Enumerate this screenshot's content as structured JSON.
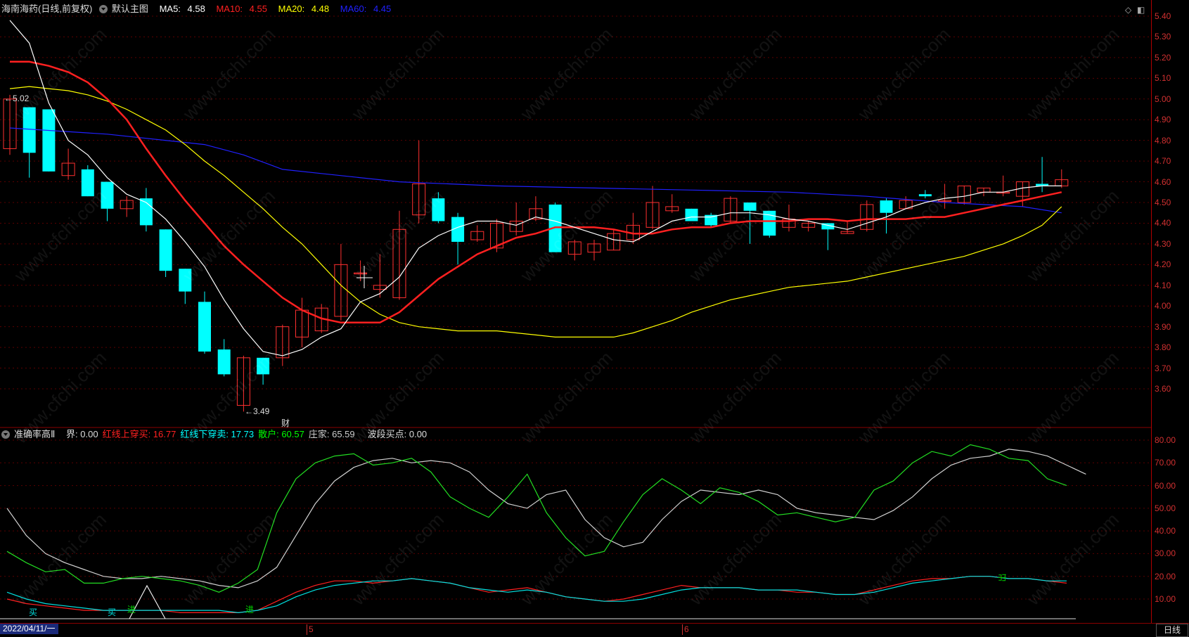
{
  "stock": {
    "name": "海南海药",
    "mode": "(日线,前复权)",
    "main_chart_label": "默认主图",
    "ma5": {
      "label": "MA5:",
      "value": "4.58",
      "color": "#ffffff"
    },
    "ma10": {
      "label": "MA10:",
      "value": "4.55",
      "color": "#ff2020"
    },
    "ma20": {
      "label": "MA20:",
      "value": "4.48",
      "color": "#ffff00"
    },
    "ma60": {
      "label": "MA60:",
      "value": "4.45",
      "color": "#2020ff"
    }
  },
  "indicator": {
    "name": "准确率高Ⅱ",
    "items": [
      {
        "label": "界:",
        "value": "0.00",
        "color": "#dddddd"
      },
      {
        "label": "红线上穿买:",
        "value": "16.77",
        "color": "#ff2020"
      },
      {
        "label": "红线下穿卖:",
        "value": "17.73",
        "color": "#00ffff"
      },
      {
        "label": "散户:",
        "value": "60.57",
        "color": "#00ff00"
      },
      {
        "label": "庄家:",
        "value": "65.59",
        "color": "#cccccc"
      },
      {
        "label": "波段买点:",
        "value": "0.00",
        "color": "#dddddd"
      }
    ]
  },
  "price_axis": [
    "5.40",
    "5.30",
    "5.20",
    "5.10",
    "5.00",
    "4.90",
    "4.80",
    "4.70",
    "4.60",
    "4.50",
    "4.40",
    "4.30",
    "4.20",
    "4.10",
    "4.00",
    "3.90",
    "3.80",
    "3.70",
    "3.60"
  ],
  "indicator_axis": [
    "80.00",
    "70.00",
    "60.00",
    "50.00",
    "40.00",
    "30.00",
    "20.00",
    "10.00"
  ],
  "annotations": {
    "high": "5.02",
    "low": "3.49",
    "finance_mark": "财",
    "buy_marks": [
      "买",
      "买"
    ],
    "enter_marks": [
      "进",
      "进"
    ],
    "exit_mark": "出"
  },
  "dates": {
    "start": "2022/04/11/一",
    "m5": "5",
    "m6": "6"
  },
  "period_button": "日线",
  "watermark": "www.cfchi.com",
  "chart_data": {
    "type": "candlestick",
    "price_range": [
      3.45,
      5.45
    ],
    "candles": [
      {
        "o": 4.76,
        "h": 5.02,
        "l": 4.73,
        "c": 5.0
      },
      {
        "o": 4.96,
        "h": 4.96,
        "l": 4.62,
        "c": 4.74
      },
      {
        "o": 4.95,
        "h": 4.95,
        "l": 4.65,
        "c": 4.65
      },
      {
        "o": 4.63,
        "h": 4.76,
        "l": 4.61,
        "c": 4.69
      },
      {
        "o": 4.66,
        "h": 4.68,
        "l": 4.53,
        "c": 4.53
      },
      {
        "o": 4.6,
        "h": 4.6,
        "l": 4.41,
        "c": 4.47
      },
      {
        "o": 4.47,
        "h": 4.53,
        "l": 4.43,
        "c": 4.51
      },
      {
        "o": 4.52,
        "h": 4.57,
        "l": 4.36,
        "c": 4.39
      },
      {
        "o": 4.37,
        "h": 4.37,
        "l": 4.14,
        "c": 4.17
      },
      {
        "o": 4.18,
        "h": 4.18,
        "l": 4.01,
        "c": 4.07
      },
      {
        "o": 4.02,
        "h": 4.07,
        "l": 3.77,
        "c": 3.78
      },
      {
        "o": 3.79,
        "h": 3.84,
        "l": 3.66,
        "c": 3.67
      },
      {
        "o": 3.52,
        "h": 3.76,
        "l": 3.49,
        "c": 3.75
      },
      {
        "o": 3.75,
        "h": 3.75,
        "l": 3.62,
        "c": 3.67
      },
      {
        "o": 3.75,
        "h": 3.91,
        "l": 3.71,
        "c": 3.9
      },
      {
        "o": 3.85,
        "h": 4.04,
        "l": 3.8,
        "c": 3.98
      },
      {
        "o": 3.88,
        "h": 4.01,
        "l": 3.87,
        "c": 3.99
      },
      {
        "o": 3.95,
        "h": 4.3,
        "l": 3.93,
        "c": 4.2
      },
      {
        "o": 4.16,
        "h": 4.22,
        "l": 4.12,
        "c": 4.16
      },
      {
        "o": 4.08,
        "h": 4.25,
        "l": 4.04,
        "c": 4.1
      },
      {
        "o": 4.04,
        "h": 4.46,
        "l": 4.03,
        "c": 4.37
      },
      {
        "o": 4.44,
        "h": 4.8,
        "l": 4.4,
        "c": 4.59
      },
      {
        "o": 4.52,
        "h": 4.55,
        "l": 4.4,
        "c": 4.41
      },
      {
        "o": 4.43,
        "h": 4.45,
        "l": 4.2,
        "c": 4.31
      },
      {
        "o": 4.32,
        "h": 4.39,
        "l": 4.31,
        "c": 4.36
      },
      {
        "o": 4.28,
        "h": 4.42,
        "l": 4.26,
        "c": 4.4
      },
      {
        "o": 4.36,
        "h": 4.5,
        "l": 4.34,
        "c": 4.41
      },
      {
        "o": 4.42,
        "h": 4.53,
        "l": 4.41,
        "c": 4.47
      },
      {
        "o": 4.49,
        "h": 4.5,
        "l": 4.26,
        "c": 4.26
      },
      {
        "o": 4.25,
        "h": 4.32,
        "l": 4.22,
        "c": 4.31
      },
      {
        "o": 4.26,
        "h": 4.32,
        "l": 4.22,
        "c": 4.3
      },
      {
        "o": 4.27,
        "h": 4.37,
        "l": 4.27,
        "c": 4.35
      },
      {
        "o": 4.32,
        "h": 4.45,
        "l": 4.3,
        "c": 4.39
      },
      {
        "o": 4.38,
        "h": 4.58,
        "l": 4.37,
        "c": 4.5
      },
      {
        "o": 4.46,
        "h": 4.54,
        "l": 4.45,
        "c": 4.48
      },
      {
        "o": 4.47,
        "h": 4.47,
        "l": 4.42,
        "c": 4.41
      },
      {
        "o": 4.44,
        "h": 4.45,
        "l": 4.38,
        "c": 4.39
      },
      {
        "o": 4.41,
        "h": 4.53,
        "l": 4.4,
        "c": 4.52
      },
      {
        "o": 4.5,
        "h": 4.5,
        "l": 4.3,
        "c": 4.46
      },
      {
        "o": 4.46,
        "h": 4.46,
        "l": 4.33,
        "c": 4.34
      },
      {
        "o": 4.38,
        "h": 4.49,
        "l": 4.36,
        "c": 4.42
      },
      {
        "o": 4.38,
        "h": 4.41,
        "l": 4.36,
        "c": 4.4
      },
      {
        "o": 4.4,
        "h": 4.4,
        "l": 4.27,
        "c": 4.37
      },
      {
        "o": 4.35,
        "h": 4.41,
        "l": 4.35,
        "c": 4.36
      },
      {
        "o": 4.37,
        "h": 4.51,
        "l": 4.36,
        "c": 4.49
      },
      {
        "o": 4.51,
        "h": 4.52,
        "l": 4.35,
        "c": 4.45
      },
      {
        "o": 4.47,
        "h": 4.53,
        "l": 4.47,
        "c": 4.51
      },
      {
        "o": 4.54,
        "h": 4.56,
        "l": 4.52,
        "c": 4.53
      },
      {
        "o": 4.51,
        "h": 4.59,
        "l": 4.47,
        "c": 4.51
      },
      {
        "o": 4.5,
        "h": 4.58,
        "l": 4.49,
        "c": 4.58
      },
      {
        "o": 4.55,
        "h": 4.57,
        "l": 4.53,
        "c": 4.57
      },
      {
        "o": 4.55,
        "h": 4.63,
        "l": 4.53,
        "c": 4.55
      },
      {
        "o": 4.53,
        "h": 4.6,
        "l": 4.48,
        "c": 4.6
      },
      {
        "o": 4.59,
        "h": 4.72,
        "l": 4.55,
        "c": 4.58
      },
      {
        "o": 4.58,
        "h": 4.66,
        "l": 4.57,
        "c": 4.61
      }
    ],
    "ma5": [
      [
        0,
        5.38
      ],
      [
        1,
        5.27
      ],
      [
        2,
        4.98
      ],
      [
        3,
        4.8
      ],
      [
        4,
        4.73
      ],
      [
        5,
        4.62
      ],
      [
        6,
        4.54
      ],
      [
        7,
        4.5
      ],
      [
        8,
        4.42
      ],
      [
        9,
        4.31
      ],
      [
        10,
        4.19
      ],
      [
        11,
        4.03
      ],
      [
        12,
        3.89
      ],
      [
        13,
        3.78
      ],
      [
        14,
        3.76
      ],
      [
        15,
        3.79
      ],
      [
        16,
        3.85
      ],
      [
        17,
        3.89
      ],
      [
        18,
        4.02
      ],
      [
        19,
        4.06
      ],
      [
        20,
        4.14
      ],
      [
        21,
        4.28
      ],
      [
        22,
        4.34
      ],
      [
        23,
        4.38
      ],
      [
        24,
        4.41
      ],
      [
        25,
        4.41
      ],
      [
        26,
        4.39
      ],
      [
        27,
        4.43
      ],
      [
        28,
        4.41
      ],
      [
        29,
        4.38
      ],
      [
        30,
        4.35
      ],
      [
        31,
        4.32
      ],
      [
        32,
        4.31
      ],
      [
        33,
        4.36
      ],
      [
        34,
        4.41
      ],
      [
        35,
        4.43
      ],
      [
        36,
        4.43
      ],
      [
        37,
        4.45
      ],
      [
        38,
        4.45
      ],
      [
        39,
        4.44
      ],
      [
        40,
        4.42
      ],
      [
        41,
        4.41
      ],
      [
        42,
        4.39
      ],
      [
        43,
        4.37
      ],
      [
        44,
        4.4
      ],
      [
        45,
        4.43
      ],
      [
        46,
        4.47
      ],
      [
        47,
        4.5
      ],
      [
        48,
        4.52
      ],
      [
        49,
        4.53
      ],
      [
        50,
        4.55
      ],
      [
        51,
        4.55
      ],
      [
        52,
        4.57
      ],
      [
        53,
        4.58
      ],
      [
        54,
        4.58
      ]
    ],
    "ma10": [
      [
        0,
        5.18
      ],
      [
        1,
        5.18
      ],
      [
        2,
        5.16
      ],
      [
        3,
        5.13
      ],
      [
        4,
        5.08
      ],
      [
        5,
        5.0
      ],
      [
        6,
        4.9
      ],
      [
        7,
        4.76
      ],
      [
        8,
        4.63
      ],
      [
        9,
        4.51
      ],
      [
        10,
        4.4
      ],
      [
        11,
        4.29
      ],
      [
        12,
        4.2
      ],
      [
        13,
        4.12
      ],
      [
        14,
        4.04
      ],
      [
        15,
        3.98
      ],
      [
        16,
        3.94
      ],
      [
        17,
        3.92
      ],
      [
        18,
        3.92
      ],
      [
        19,
        3.92
      ],
      [
        20,
        3.97
      ],
      [
        21,
        4.05
      ],
      [
        22,
        4.13
      ],
      [
        23,
        4.19
      ],
      [
        24,
        4.25
      ],
      [
        25,
        4.29
      ],
      [
        26,
        4.33
      ],
      [
        27,
        4.35
      ],
      [
        28,
        4.38
      ],
      [
        29,
        4.38
      ],
      [
        30,
        4.38
      ],
      [
        31,
        4.37
      ],
      [
        32,
        4.35
      ],
      [
        33,
        4.35
      ],
      [
        34,
        4.37
      ],
      [
        35,
        4.38
      ],
      [
        36,
        4.38
      ],
      [
        37,
        4.4
      ],
      [
        38,
        4.41
      ],
      [
        39,
        4.41
      ],
      [
        40,
        4.41
      ],
      [
        41,
        4.42
      ],
      [
        42,
        4.42
      ],
      [
        43,
        4.41
      ],
      [
        44,
        4.42
      ],
      [
        45,
        4.42
      ],
      [
        46,
        4.42
      ],
      [
        47,
        4.43
      ],
      [
        48,
        4.43
      ],
      [
        49,
        4.45
      ],
      [
        50,
        4.47
      ],
      [
        51,
        4.49
      ],
      [
        52,
        4.51
      ],
      [
        53,
        4.53
      ],
      [
        54,
        4.55
      ]
    ],
    "ma20": [
      [
        0,
        5.05
      ],
      [
        1,
        5.06
      ],
      [
        2,
        5.05
      ],
      [
        3,
        5.04
      ],
      [
        4,
        5.02
      ],
      [
        5,
        4.99
      ],
      [
        6,
        4.95
      ],
      [
        7,
        4.9
      ],
      [
        8,
        4.85
      ],
      [
        9,
        4.78
      ],
      [
        10,
        4.7
      ],
      [
        11,
        4.63
      ],
      [
        12,
        4.55
      ],
      [
        13,
        4.47
      ],
      [
        14,
        4.38
      ],
      [
        15,
        4.3
      ],
      [
        16,
        4.2
      ],
      [
        17,
        4.1
      ],
      [
        18,
        4.02
      ],
      [
        19,
        3.96
      ],
      [
        20,
        3.92
      ],
      [
        21,
        3.9
      ],
      [
        22,
        3.89
      ],
      [
        23,
        3.88
      ],
      [
        24,
        3.88
      ],
      [
        25,
        3.88
      ],
      [
        26,
        3.87
      ],
      [
        27,
        3.86
      ],
      [
        28,
        3.85
      ],
      [
        29,
        3.85
      ],
      [
        30,
        3.85
      ],
      [
        31,
        3.85
      ],
      [
        32,
        3.87
      ],
      [
        33,
        3.9
      ],
      [
        34,
        3.93
      ],
      [
        35,
        3.97
      ],
      [
        36,
        4.0
      ],
      [
        37,
        4.03
      ],
      [
        38,
        4.05
      ],
      [
        39,
        4.07
      ],
      [
        40,
        4.09
      ],
      [
        41,
        4.1
      ],
      [
        42,
        4.11
      ],
      [
        43,
        4.12
      ],
      [
        44,
        4.14
      ],
      [
        45,
        4.16
      ],
      [
        46,
        4.18
      ],
      [
        47,
        4.2
      ],
      [
        48,
        4.22
      ],
      [
        49,
        4.24
      ],
      [
        50,
        4.27
      ],
      [
        51,
        4.3
      ],
      [
        52,
        4.34
      ],
      [
        53,
        4.39
      ],
      [
        54,
        4.48
      ]
    ],
    "ma60": [
      [
        0,
        4.86
      ],
      [
        5,
        4.83
      ],
      [
        10,
        4.78
      ],
      [
        12,
        4.73
      ],
      [
        14,
        4.66
      ],
      [
        16,
        4.64
      ],
      [
        20,
        4.6
      ],
      [
        25,
        4.58
      ],
      [
        30,
        4.57
      ],
      [
        35,
        4.56
      ],
      [
        40,
        4.55
      ],
      [
        44,
        4.53
      ],
      [
        48,
        4.5
      ],
      [
        52,
        4.48
      ],
      [
        54,
        4.45
      ]
    ],
    "indicator_range": [
      0,
      85
    ],
    "retail": [
      31,
      26,
      22,
      23,
      17,
      17,
      19,
      20,
      19,
      18,
      16,
      13,
      17,
      23,
      48,
      63,
      70,
      73,
      74,
      69,
      70,
      72,
      66,
      55,
      50,
      46,
      55,
      65,
      48,
      37,
      29,
      31,
      44,
      56,
      63,
      58,
      52,
      59,
      57,
      53,
      47,
      48,
      46,
      44,
      46,
      58,
      62,
      70,
      75,
      73,
      78,
      76,
      72,
      71,
      63,
      60
    ],
    "dealer": [
      50,
      38,
      30,
      26,
      23,
      20,
      19,
      19,
      20,
      19,
      18,
      16,
      15,
      18,
      24,
      38,
      52,
      62,
      68,
      71,
      72,
      70,
      71,
      70,
      66,
      58,
      52,
      50,
      56,
      58,
      45,
      37,
      33,
      35,
      45,
      53,
      58,
      57,
      56,
      58,
      56,
      50,
      48,
      47,
      46,
      45,
      49,
      55,
      63,
      69,
      72,
      73,
      76,
      75,
      73,
      69,
      65
    ],
    "red_line": [
      10,
      8,
      7,
      6,
      5,
      5,
      5,
      5,
      5,
      4,
      4,
      4,
      4,
      5,
      9,
      13,
      16,
      18,
      18,
      17,
      18,
      19,
      18,
      17,
      15,
      13,
      14,
      15,
      13,
      11,
      10,
      9,
      10,
      12,
      14,
      16,
      15,
      15,
      15,
      14,
      14,
      13,
      13,
      12,
      12,
      14,
      16,
      18,
      19,
      19,
      20,
      20,
      19,
      19,
      18,
      17
    ],
    "cyan_line": [
      13,
      10,
      8,
      7,
      6,
      5,
      5,
      5,
      5,
      5,
      5,
      5,
      4,
      5,
      7,
      11,
      14,
      16,
      17,
      18,
      18,
      19,
      18,
      17,
      15,
      14,
      13,
      14,
      13,
      11,
      10,
      9,
      9,
      10,
      12,
      14,
      15,
      15,
      15,
      14,
      14,
      14,
      13,
      12,
      12,
      13,
      15,
      17,
      18,
      19,
      20,
      20,
      19,
      19,
      18,
      18
    ]
  }
}
